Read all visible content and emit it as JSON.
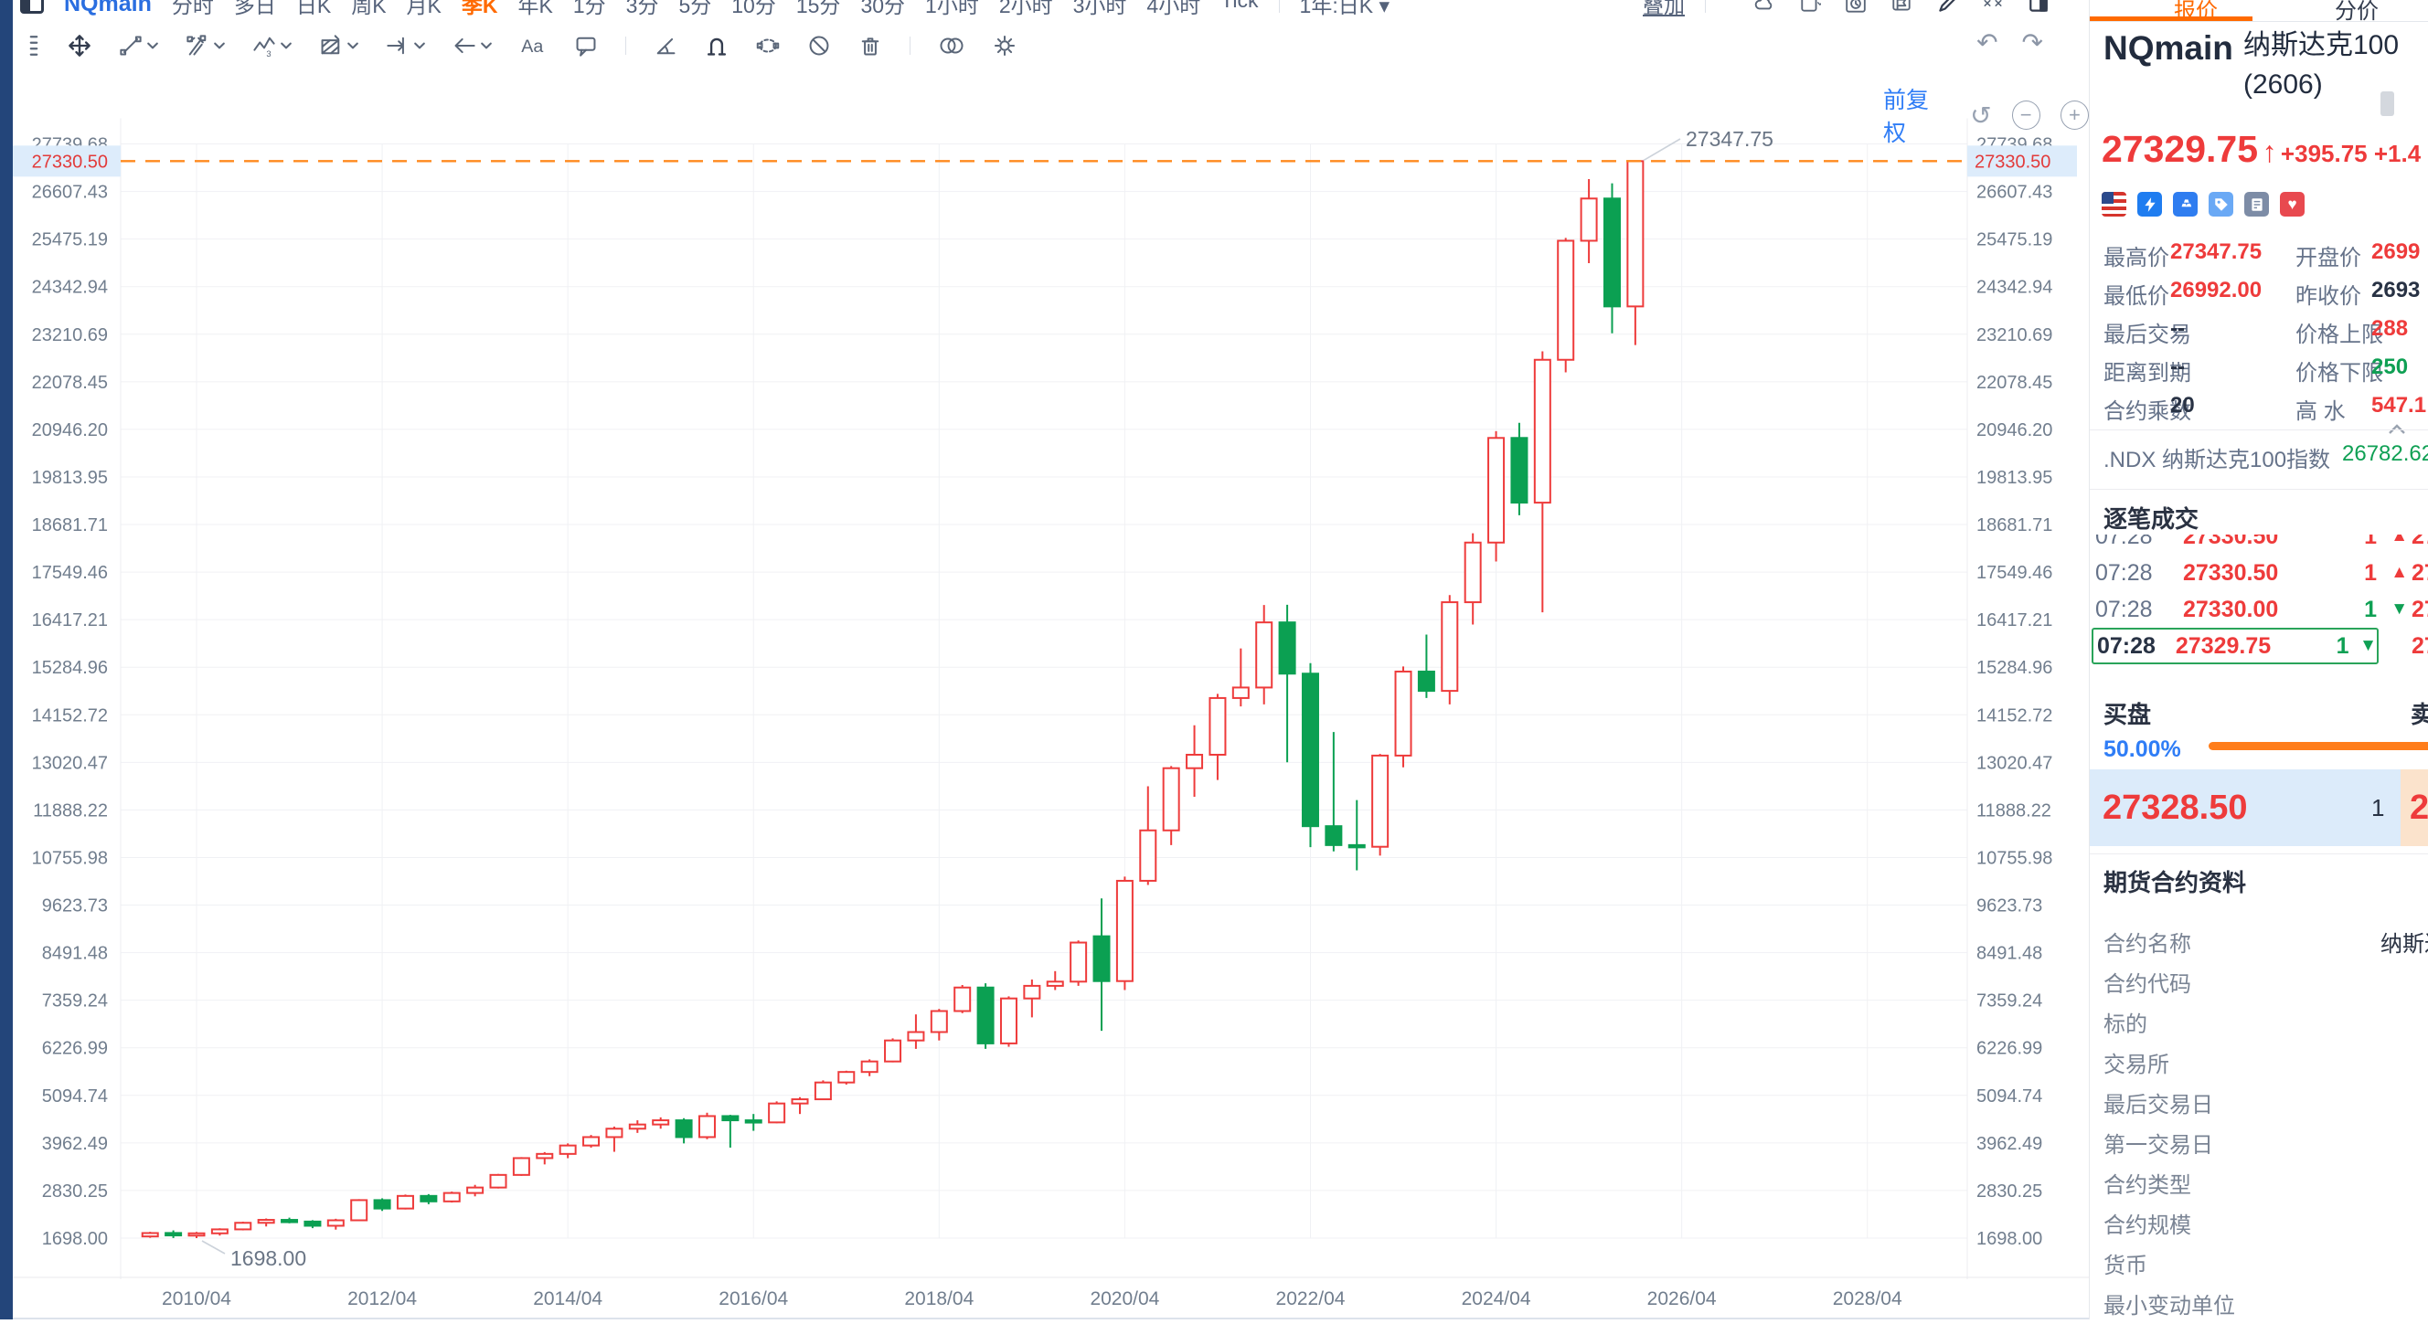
{
  "topbar": {
    "symbol": "NQmain",
    "timeframes": [
      "分时",
      "多日",
      "日K",
      "周K",
      "月K",
      "季K",
      "年K",
      "1分",
      "3分",
      "5分",
      "10分",
      "15分",
      "30分",
      "1小时",
      "2小时",
      "3小时",
      "4小时",
      "Tick"
    ],
    "active_timeframe": "季K",
    "period_selector": "1年:日K",
    "overlay_label": "叠加"
  },
  "right_tabs": {
    "quote": "报价",
    "by_price": "分价"
  },
  "chart": {
    "adjust_label": "前复权",
    "current_price_label": "27330.50",
    "high_annotation": "27347.75",
    "low_annotation": "1698.00"
  },
  "chart_data": {
    "type": "candlestick",
    "title": "NQmain 纳斯达克100 季K 前复权",
    "current_price": 27330.5,
    "high_marker": 27347.75,
    "low_marker": 1698.0,
    "ylim": [
      1698.0,
      27739.68
    ],
    "y_ticks": [
      "27739.68",
      "26607.43",
      "25475.19",
      "24342.94",
      "23210.69",
      "22078.45",
      "20946.20",
      "19813.95",
      "18681.71",
      "17549.46",
      "16417.21",
      "15284.96",
      "14152.72",
      "13020.47",
      "11888.22",
      "10755.98",
      "9623.73",
      "8491.48",
      "7359.24",
      "6226.99",
      "5094.74",
      "3962.49",
      "2830.25",
      "1698.00"
    ],
    "x_ticks": [
      "2010/04",
      "2012/04",
      "2014/04",
      "2016/04",
      "2018/04",
      "2020/04",
      "2022/04",
      "2024/04",
      "2026/04",
      "2028/04"
    ],
    "candles": [
      [
        "2009Q4",
        1738,
        1848,
        1705,
        1818
      ],
      [
        "2010Q1",
        1820,
        1882,
        1700,
        1762
      ],
      [
        "2010Q2",
        1765,
        1845,
        1698,
        1812
      ],
      [
        "2010Q3",
        1812,
        1932,
        1758,
        1906
      ],
      [
        "2010Q4",
        1906,
        2088,
        1882,
        2062
      ],
      [
        "2011Q1",
        2062,
        2165,
        1975,
        2132
      ],
      [
        "2011Q2",
        2132,
        2185,
        2050,
        2092
      ],
      [
        "2011Q3",
        2092,
        2125,
        1935,
        1992
      ],
      [
        "2011Q4",
        1992,
        2158,
        1900,
        2122
      ],
      [
        "2012Q1",
        2122,
        2625,
        2100,
        2602
      ],
      [
        "2012Q2",
        2602,
        2645,
        2345,
        2402
      ],
      [
        "2012Q3",
        2402,
        2735,
        2380,
        2702
      ],
      [
        "2012Q4",
        2702,
        2745,
        2505,
        2572
      ],
      [
        "2013Q1",
        2572,
        2805,
        2545,
        2772
      ],
      [
        "2013Q2",
        2772,
        2965,
        2692,
        2902
      ],
      [
        "2013Q3",
        2902,
        3225,
        2880,
        3202
      ],
      [
        "2013Q4",
        3202,
        3625,
        3180,
        3602
      ],
      [
        "2014Q1",
        3602,
        3745,
        3452,
        3702
      ],
      [
        "2014Q2",
        3702,
        3952,
        3600,
        3902
      ],
      [
        "2014Q3",
        3902,
        4152,
        3852,
        4102
      ],
      [
        "2014Q4",
        4102,
        4352,
        3752,
        4302
      ],
      [
        "2015Q1",
        4302,
        4502,
        4202,
        4402
      ],
      [
        "2015Q2",
        4402,
        4572,
        4302,
        4502
      ],
      [
        "2015Q3",
        4502,
        4552,
        3952,
        4102
      ],
      [
        "2015Q4",
        4102,
        4682,
        4052,
        4602
      ],
      [
        "2016Q1",
        4602,
        4632,
        3852,
        4502
      ],
      [
        "2016Q2",
        4502,
        4652,
        4252,
        4452
      ],
      [
        "2016Q3",
        4452,
        4952,
        4432,
        4902
      ],
      [
        "2016Q4",
        4902,
        5052,
        4652,
        5002
      ],
      [
        "2017Q1",
        5002,
        5452,
        4982,
        5402
      ],
      [
        "2017Q2",
        5402,
        5682,
        5352,
        5652
      ],
      [
        "2017Q3",
        5652,
        5952,
        5552,
        5902
      ],
      [
        "2017Q4",
        5902,
        6452,
        5882,
        6402
      ],
      [
        "2018Q1",
        6402,
        7022,
        6202,
        6602
      ],
      [
        "2018Q2",
        6602,
        7152,
        6402,
        7102
      ],
      [
        "2018Q3",
        7102,
        7722,
        7052,
        7662
      ],
      [
        "2018Q4",
        7662,
        7762,
        6202,
        6332
      ],
      [
        "2019Q1",
        6332,
        7452,
        6252,
        7402
      ],
      [
        "2019Q2",
        7402,
        7852,
        6952,
        7702
      ],
      [
        "2019Q3",
        7702,
        8052,
        7602,
        7802
      ],
      [
        "2019Q4",
        7802,
        8782,
        7702,
        8732
      ],
      [
        "2020Q1",
        8882,
        9782,
        6632,
        7815
      ],
      [
        "2020Q2",
        7815,
        10302,
        7602,
        10202
      ],
      [
        "2020Q3",
        10202,
        12452,
        10102,
        11402
      ],
      [
        "2020Q4",
        11402,
        12932,
        11052,
        12882
      ],
      [
        "2021Q1",
        12882,
        13902,
        12202,
        13202
      ],
      [
        "2021Q2",
        13202,
        14652,
        12602,
        14552
      ],
      [
        "2021Q3",
        14552,
        15732,
        14352,
        14802
      ],
      [
        "2021Q4",
        14802,
        16767,
        14402,
        16352
      ],
      [
        "2022Q1",
        16352,
        16772,
        13022,
        15132
      ],
      [
        "2022Q2",
        15132,
        15382,
        11002,
        11502
      ],
      [
        "2022Q3",
        11502,
        13742,
        10902,
        11052
      ],
      [
        "2022Q4",
        11052,
        12122,
        10452,
        11012
      ],
      [
        "2023Q1",
        11012,
        13222,
        10802,
        13182
      ],
      [
        "2023Q2",
        13182,
        15302,
        12902,
        15182
      ],
      [
        "2023Q3",
        15182,
        16062,
        14552,
        14722
      ],
      [
        "2023Q4",
        14722,
        17002,
        14402,
        16832
      ],
      [
        "2024Q1",
        16832,
        18472,
        16302,
        18252
      ],
      [
        "2024Q2",
        18252,
        20902,
        17802,
        20742
      ],
      [
        "2024Q3",
        20742,
        21102,
        18902,
        19202
      ],
      [
        "2024Q4",
        19202,
        22802,
        16592,
        22602
      ],
      [
        "2025Q1",
        22602,
        25502,
        22302,
        25435
      ],
      [
        "2025Q2",
        25435,
        26902,
        24902,
        26440
      ],
      [
        "2025Q3",
        26440,
        26802,
        23232,
        23872
      ],
      [
        "2025Q4",
        23872,
        27347.75,
        22952,
        27329.75
      ]
    ]
  },
  "quote_panel": {
    "name": "NQmain",
    "title": "纳斯达克100",
    "code": "(2606)",
    "last": "27329.75",
    "direction_arrow": "↑",
    "change": "+395.75 +1.4",
    "badges": [
      "us-flag",
      "lightning-1",
      "gold-bars",
      "tag",
      "note",
      "heart"
    ],
    "stats": [
      {
        "label": "最高价",
        "value": "27347.75",
        "color": "red"
      },
      {
        "label": "开盘价",
        "value": "2699",
        "color": "red"
      },
      {
        "label": "最低价",
        "value": "26992.00",
        "color": "red"
      },
      {
        "label": "昨收价",
        "value": "2693",
        "color": "dark"
      },
      {
        "label": "最后交易",
        "value": "--",
        "color": "dark"
      },
      {
        "label": "价格上限",
        "value": "288",
        "color": "red"
      },
      {
        "label": "距离到期",
        "value": "--",
        "color": "dark"
      },
      {
        "label": "价格下限",
        "value": "250",
        "color": "green"
      },
      {
        "label": "合约乘数",
        "value": "20",
        "color": "dark"
      },
      {
        "label": "高 水",
        "value": "547.1",
        "color": "red"
      }
    ],
    "index_row": {
      "label": ".NDX 纳斯达克100指数",
      "value": "26782.62"
    },
    "tick_section": {
      "title": "逐笔成交",
      "rows": [
        {
          "time": "07:28",
          "price": "27330.50",
          "qty": "1",
          "dir": "up"
        },
        {
          "time": "07:28",
          "price": "27330.50",
          "qty": "1",
          "dir": "up"
        },
        {
          "time": "07:28",
          "price": "27330.00",
          "qty": "1",
          "dir": "down"
        },
        {
          "time": "07:28",
          "price": "27329.75",
          "qty": "1",
          "dir": "down",
          "highlight": true
        }
      ],
      "overflow_col": "27"
    },
    "depth": {
      "bid_label": "买盘",
      "ask_label": "卖盘",
      "bid_pct": "50.00%",
      "bid_price": "27328.50",
      "bid_qty": "1",
      "ask_price_partial": "2"
    },
    "contract_section": {
      "title": "期货合约资料",
      "rows": [
        {
          "label": "合约名称",
          "value": "纳斯达克"
        },
        {
          "label": "合约代码",
          "value": ""
        },
        {
          "label": "标的",
          "value": ""
        },
        {
          "label": "交易所",
          "value": ""
        },
        {
          "label": "最后交易日",
          "value": ""
        },
        {
          "label": "第一交易日",
          "value": ""
        },
        {
          "label": "合约类型",
          "value": ""
        },
        {
          "label": "合约规模",
          "value": ""
        },
        {
          "label": "货币",
          "value": ""
        },
        {
          "label": "最小变动单位",
          "value": ""
        }
      ]
    }
  },
  "colors": {
    "up": "#ee3b3b",
    "down": "#0ba052",
    "dashed_line": "#ff8a1e",
    "accent_orange": "#ff6a00",
    "link_blue": "#2f7df6",
    "navy_strip": "#23457a",
    "price_badge_bg": "#ddecfb",
    "bid_bg": "#dcebfa",
    "ask_bg": "#fbe3cc"
  }
}
